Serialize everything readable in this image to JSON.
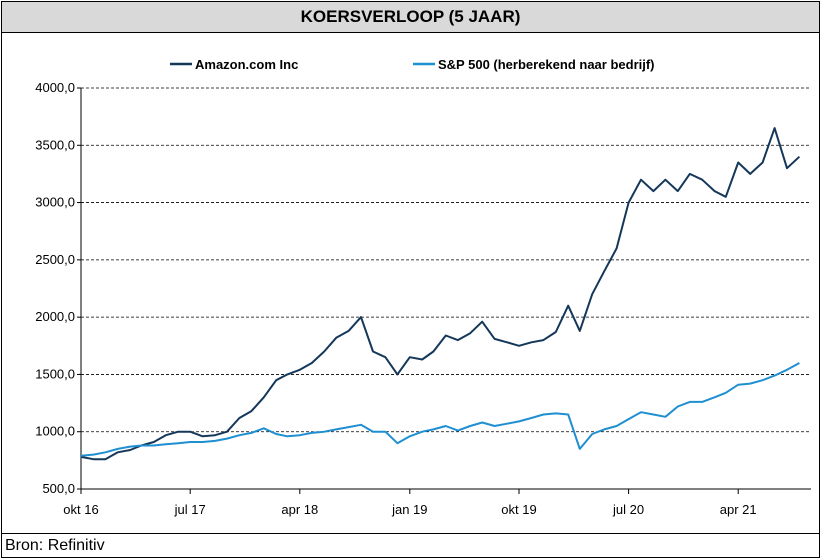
{
  "title": "KOERSVERLOOP (5 JAAR)",
  "source": "Bron: Refinitiv",
  "colors": {
    "amazon": "#14375a",
    "sp500": "#1f8fd2",
    "grid": "#000000"
  },
  "chart_data": {
    "type": "line",
    "title": "KOERSVERLOOP (5 JAAR)",
    "xlabel": "",
    "ylabel": "",
    "ylim": [
      500,
      4000
    ],
    "yticks": [
      500,
      1000,
      1500,
      2000,
      2500,
      3000,
      3500,
      4000
    ],
    "ytick_labels": [
      "500,0",
      "1000,0",
      "1500,0",
      "2000,0",
      "2500,0",
      "3000,0",
      "3500,0",
      "4000,0"
    ],
    "xlim": [
      "2016-10-01",
      "2021-09-30"
    ],
    "xticks": [
      "2016-10-01",
      "2017-07-01",
      "2018-04-01",
      "2019-01-01",
      "2019-10-01",
      "2020-07-01",
      "2021-04-01"
    ],
    "xtick_labels": [
      "okt 16",
      "jul 17",
      "apr 18",
      "jan 19",
      "okt 19",
      "jul 20",
      "apr 21"
    ],
    "grid": "horizontal dashed",
    "legend": "top",
    "series": [
      {
        "name": "Amazon.com Inc",
        "x": [
          "2016-10-01",
          "2016-11-01",
          "2016-12-01",
          "2017-01-01",
          "2017-02-01",
          "2017-03-01",
          "2017-04-01",
          "2017-05-01",
          "2017-06-01",
          "2017-07-01",
          "2017-08-01",
          "2017-09-01",
          "2017-10-01",
          "2017-11-01",
          "2017-12-01",
          "2018-01-01",
          "2018-02-01",
          "2018-03-01",
          "2018-04-01",
          "2018-05-01",
          "2018-06-01",
          "2018-07-01",
          "2018-08-01",
          "2018-09-01",
          "2018-10-01",
          "2018-11-01",
          "2018-12-01",
          "2019-01-01",
          "2019-02-01",
          "2019-03-01",
          "2019-04-01",
          "2019-05-01",
          "2019-06-01",
          "2019-07-01",
          "2019-08-01",
          "2019-09-01",
          "2019-10-01",
          "2019-11-01",
          "2019-12-01",
          "2020-01-01",
          "2020-02-01",
          "2020-03-01",
          "2020-04-01",
          "2020-05-01",
          "2020-06-01",
          "2020-07-01",
          "2020-08-01",
          "2020-09-01",
          "2020-10-01",
          "2020-11-01",
          "2020-12-01",
          "2021-01-01",
          "2021-02-01",
          "2021-03-01",
          "2021-04-01",
          "2021-05-01",
          "2021-06-01",
          "2021-07-01",
          "2021-08-01",
          "2021-09-01"
        ],
        "values": [
          780,
          760,
          760,
          820,
          840,
          880,
          910,
          970,
          1000,
          1000,
          960,
          970,
          1000,
          1120,
          1180,
          1300,
          1450,
          1500,
          1540,
          1600,
          1700,
          1820,
          1880,
          2000,
          1700,
          1650,
          1500,
          1650,
          1630,
          1700,
          1840,
          1800,
          1860,
          1960,
          1810,
          1780,
          1750,
          1780,
          1800,
          1870,
          2100,
          1880,
          2200,
          2400,
          2600,
          3000,
          3200,
          3100,
          3200,
          3100,
          3250,
          3200,
          3100,
          3050,
          3350,
          3250,
          3350,
          3650,
          3300,
          3400
        ]
      },
      {
        "name": "S&P 500 (herberekend naar bedrijf)",
        "x": [
          "2016-10-01",
          "2016-11-01",
          "2016-12-01",
          "2017-01-01",
          "2017-02-01",
          "2017-03-01",
          "2017-04-01",
          "2017-05-01",
          "2017-06-01",
          "2017-07-01",
          "2017-08-01",
          "2017-09-01",
          "2017-10-01",
          "2017-11-01",
          "2017-12-01",
          "2018-01-01",
          "2018-02-01",
          "2018-03-01",
          "2018-04-01",
          "2018-05-01",
          "2018-06-01",
          "2018-07-01",
          "2018-08-01",
          "2018-09-01",
          "2018-10-01",
          "2018-11-01",
          "2018-12-01",
          "2019-01-01",
          "2019-02-01",
          "2019-03-01",
          "2019-04-01",
          "2019-05-01",
          "2019-06-01",
          "2019-07-01",
          "2019-08-01",
          "2019-09-01",
          "2019-10-01",
          "2019-11-01",
          "2019-12-01",
          "2020-01-01",
          "2020-02-01",
          "2020-03-01",
          "2020-04-01",
          "2020-05-01",
          "2020-06-01",
          "2020-07-01",
          "2020-08-01",
          "2020-09-01",
          "2020-10-01",
          "2020-11-01",
          "2020-12-01",
          "2021-01-01",
          "2021-02-01",
          "2021-03-01",
          "2021-04-01",
          "2021-05-01",
          "2021-06-01",
          "2021-07-01",
          "2021-08-01",
          "2021-09-01"
        ],
        "values": [
          790,
          800,
          820,
          850,
          870,
          880,
          880,
          890,
          900,
          910,
          910,
          920,
          940,
          970,
          990,
          1030,
          980,
          960,
          970,
          990,
          1000,
          1020,
          1040,
          1060,
          1000,
          1000,
          900,
          960,
          1000,
          1020,
          1050,
          1010,
          1050,
          1080,
          1050,
          1070,
          1090,
          1120,
          1150,
          1160,
          1150,
          850,
          980,
          1020,
          1050,
          1110,
          1170,
          1150,
          1130,
          1220,
          1260,
          1260,
          1300,
          1340,
          1410,
          1420,
          1450,
          1490,
          1540,
          1600
        ]
      }
    ]
  }
}
